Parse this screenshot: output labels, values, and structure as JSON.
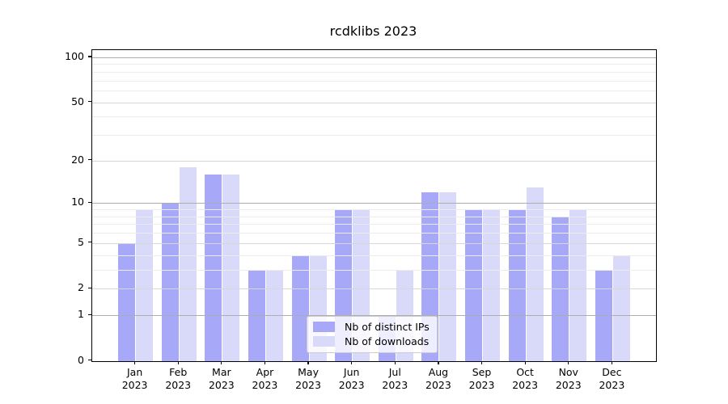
{
  "chart_data": {
    "type": "bar",
    "title": "rcdklibs 2023",
    "categories": [
      "Jan 2023",
      "Feb 2023",
      "Mar 2023",
      "Apr 2023",
      "May 2023",
      "Jun 2023",
      "Jul 2023",
      "Aug 2023",
      "Sep 2023",
      "Oct 2023",
      "Nov 2023",
      "Dec 2023"
    ],
    "series": [
      {
        "name": "Nb of distinct IPs",
        "color": "#a8a8f8",
        "values": [
          5,
          10,
          16,
          3,
          4,
          9,
          1,
          12,
          9,
          9,
          8,
          3
        ]
      },
      {
        "name": "Nb of downloads",
        "color": "#d9d9fa",
        "values": [
          9,
          18,
          16,
          3,
          4,
          9,
          3,
          12,
          9,
          13,
          9,
          4
        ]
      }
    ],
    "xlabel": "",
    "ylabel": "",
    "yscale": "log1p",
    "ylim": [
      0,
      112
    ],
    "yticks_labeled": [
      0,
      1,
      2,
      5,
      10,
      20,
      50,
      100
    ],
    "yticks_decade": [
      1,
      10,
      100
    ],
    "yticks_mid": [
      2,
      5,
      20,
      50
    ],
    "yticks_minor": [
      3,
      4,
      6,
      7,
      8,
      9,
      30,
      40,
      60,
      70,
      80,
      90
    ],
    "grid": true,
    "legend_position": "lower center",
    "axis_color": "#000000",
    "grid_color_major": "#adadad",
    "grid_color_mid": "#d7d7d7",
    "grid_color_minor": "#ececec"
  }
}
